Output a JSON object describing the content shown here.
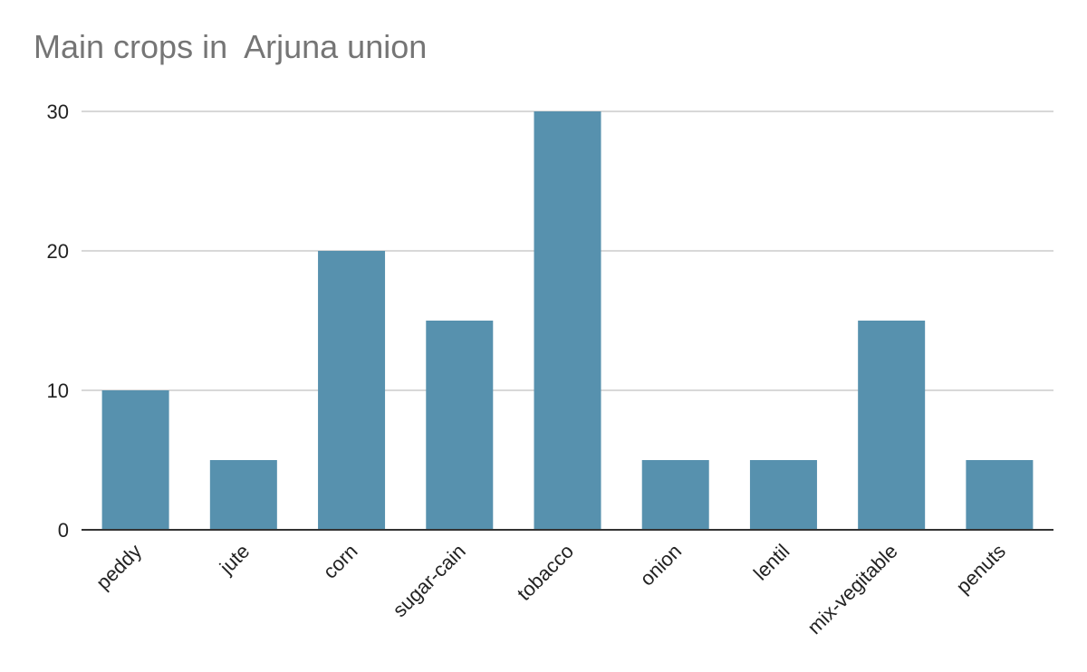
{
  "chart_data": {
    "type": "bar",
    "title": "Main crops in  Arjuna union",
    "xlabel": "",
    "ylabel": "",
    "categories": [
      "peddy",
      "jute",
      "corn",
      "sugar-cain",
      "tobacco",
      "onion",
      "lentil",
      "mix-vegitable",
      "penuts"
    ],
    "series": [
      {
        "values": [
          10,
          5,
          20,
          15,
          30,
          5,
          5,
          15,
          5
        ]
      }
    ],
    "ylim": [
      0,
      30
    ],
    "yticks": [
      0,
      10,
      20,
      30
    ],
    "grid": true,
    "legend": "none",
    "bar_color": "#5791AE",
    "grid_color": "#CCCCCC",
    "axis_color": "#333333",
    "title_color": "#757575"
  }
}
